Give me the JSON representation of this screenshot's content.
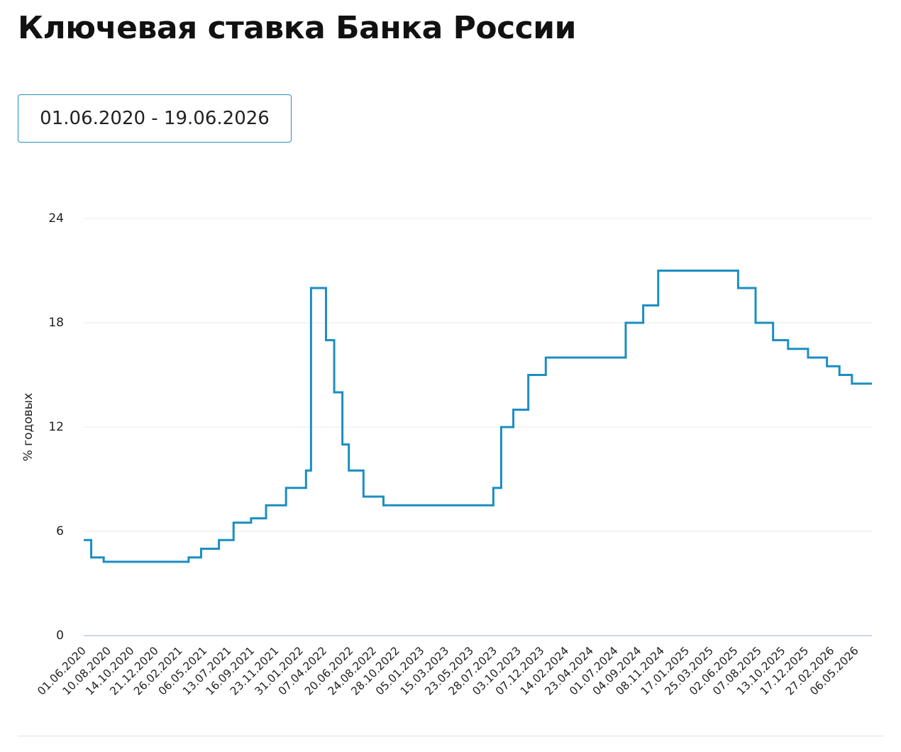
{
  "header": {
    "title": "Ключевая ставка Банка России",
    "date_range": "01.06.2020 - 19.06.2026"
  },
  "chart_data": {
    "type": "line",
    "step": true,
    "y_label": "% годовых",
    "ylim": [
      0,
      24
    ],
    "yticks": [
      0,
      6,
      12,
      18,
      24
    ],
    "grid": true,
    "xlim": [
      "01.06.2020",
      "19.06.2026"
    ],
    "xticks": [
      "01.06.2020",
      "10.08.2020",
      "14.10.2020",
      "21.12.2020",
      "26.02.2021",
      "06.05.2021",
      "13.07.2021",
      "16.09.2021",
      "23.11.2021",
      "31.01.2022",
      "07.04.2022",
      "20.06.2022",
      "24.08.2022",
      "28.10.2022",
      "05.01.2023",
      "15.03.2023",
      "23.05.2023",
      "28.07.2023",
      "03.10.2023",
      "07.12.2023",
      "14.02.2024",
      "23.04.2024",
      "01.07.2024",
      "04.09.2024",
      "08.11.2024",
      "17.01.2025",
      "25.03.2025",
      "02.06.2025",
      "07.08.2025",
      "13.10.2025",
      "17.12.2025",
      "27.02.2026",
      "06.05.2026"
    ],
    "series": [
      {
        "color": "#1b8ec2",
        "x": [
          "01.06.2020",
          "22.06.2020",
          "27.07.2020",
          "22.03.2021",
          "26.04.2021",
          "15.06.2021",
          "26.07.2021",
          "13.09.2021",
          "25.10.2021",
          "20.12.2021",
          "14.02.2022",
          "28.02.2022",
          "11.04.2022",
          "04.05.2022",
          "27.05.2022",
          "14.06.2022",
          "25.07.2022",
          "19.09.2022",
          "24.07.2023",
          "15.08.2023",
          "18.09.2023",
          "30.10.2023",
          "18.12.2023",
          "29.07.2024",
          "16.09.2024",
          "28.10.2024",
          "09.06.2025",
          "28.07.2025",
          "15.09.2025",
          "27.10.2025",
          "22.12.2025",
          "13.02.2026",
          "20.03.2026",
          "24.04.2026"
        ],
        "values": [
          5.5,
          4.5,
          4.25,
          4.5,
          5,
          5.5,
          6.5,
          6.75,
          7.5,
          8.5,
          9.5,
          20,
          17,
          14,
          11,
          9.5,
          8,
          7.5,
          8.5,
          12,
          13,
          15,
          16,
          18,
          19,
          21,
          20,
          18,
          17,
          16.5,
          16,
          15.5,
          15,
          14.5
        ]
      }
    ]
  }
}
